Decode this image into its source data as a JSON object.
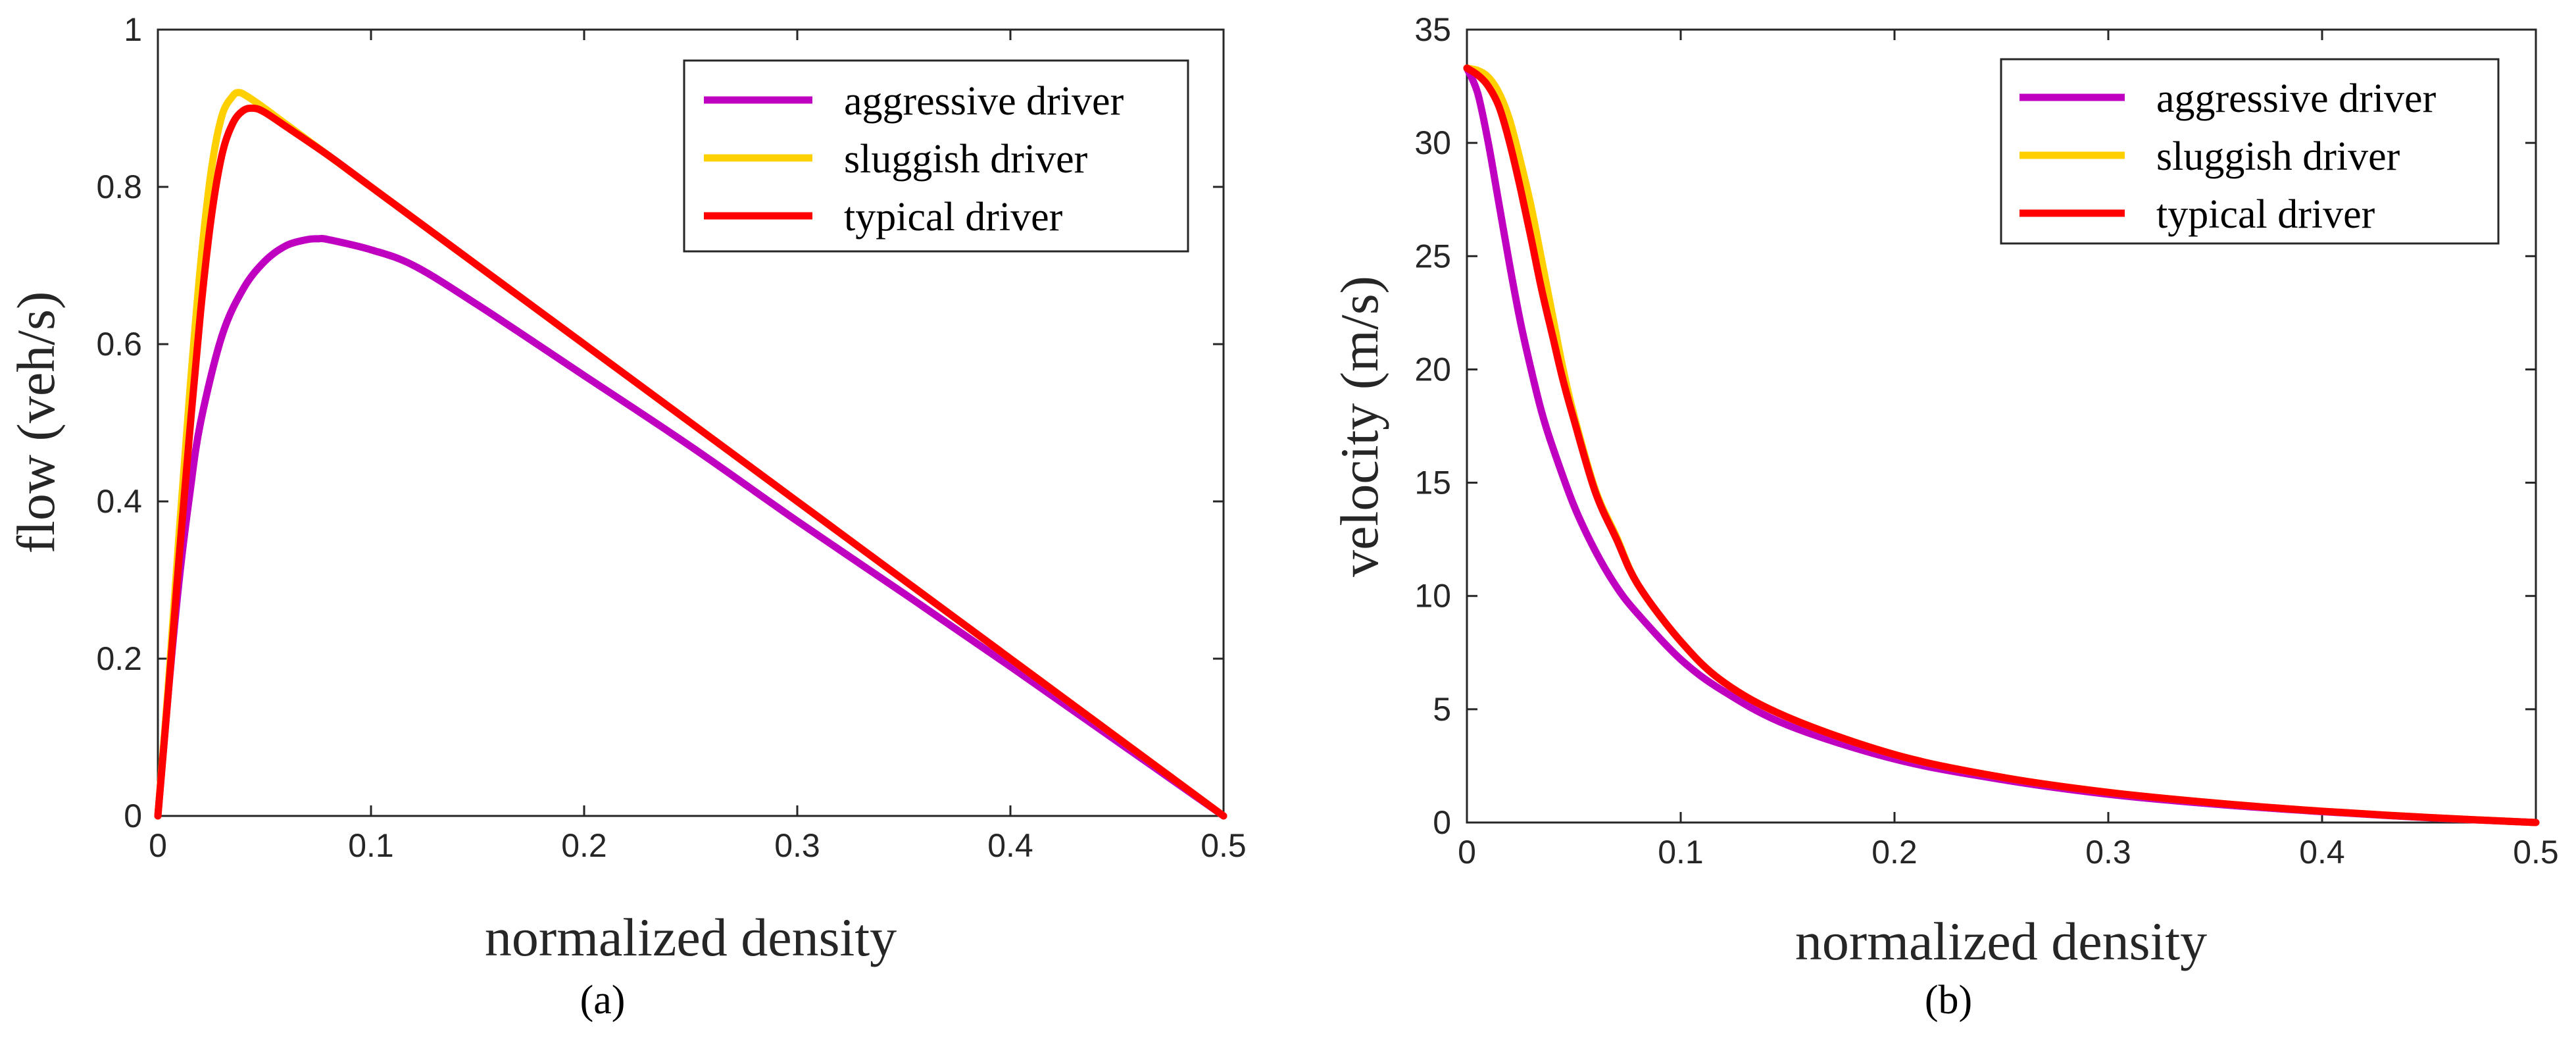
{
  "chart_data": [
    {
      "panel_label": "(a)",
      "type": "line",
      "xlabel": "normalized density",
      "ylabel": "flow (veh/s)",
      "xlim": [
        0,
        0.5
      ],
      "ylim": [
        0,
        1
      ],
      "xticks": [
        "0",
        "0.1",
        "0.2",
        "0.3",
        "0.4",
        "0.5"
      ],
      "yticks": [
        "0",
        "0.2",
        "0.4",
        "0.6",
        "0.8",
        "1"
      ],
      "legend_position": "top-right",
      "series": [
        {
          "name": "aggressive driver",
          "color": "#c000c0",
          "x": [
            0,
            0.005,
            0.01,
            0.015,
            0.02,
            0.03,
            0.04,
            0.05,
            0.06,
            0.07,
            0.075,
            0.08,
            0.1,
            0.12,
            0.15,
            0.2,
            0.25,
            0.3,
            0.35,
            0.4,
            0.45,
            0.5
          ],
          "y": [
            0,
            0.16,
            0.3,
            0.41,
            0.5,
            0.61,
            0.67,
            0.705,
            0.725,
            0.733,
            0.734,
            0.733,
            0.72,
            0.7,
            0.65,
            0.56,
            0.47,
            0.375,
            0.283,
            0.19,
            0.095,
            0
          ]
        },
        {
          "name": "sluggish driver",
          "color": "#ffd000",
          "x": [
            0,
            0.005,
            0.01,
            0.015,
            0.02,
            0.025,
            0.03,
            0.035,
            0.038,
            0.042,
            0.05,
            0.06,
            0.08,
            0.1,
            0.15,
            0.2,
            0.25,
            0.3,
            0.35,
            0.4,
            0.45,
            0.5
          ],
          "y": [
            0,
            0.17,
            0.36,
            0.54,
            0.7,
            0.82,
            0.89,
            0.915,
            0.92,
            0.915,
            0.9,
            0.88,
            0.84,
            0.8,
            0.7,
            0.6,
            0.5,
            0.4,
            0.3,
            0.2,
            0.1,
            0
          ]
        },
        {
          "name": "typical driver",
          "color": "#ff0000",
          "x": [
            0,
            0.005,
            0.01,
            0.015,
            0.02,
            0.025,
            0.03,
            0.035,
            0.04,
            0.045,
            0.05,
            0.06,
            0.08,
            0.1,
            0.15,
            0.2,
            0.25,
            0.3,
            0.35,
            0.4,
            0.45,
            0.5
          ],
          "y": [
            0,
            0.16,
            0.33,
            0.49,
            0.64,
            0.76,
            0.84,
            0.88,
            0.897,
            0.9,
            0.895,
            0.877,
            0.84,
            0.8,
            0.7,
            0.6,
            0.5,
            0.4,
            0.3,
            0.2,
            0.1,
            0
          ]
        }
      ]
    },
    {
      "panel_label": "(b)",
      "type": "line",
      "xlabel": "normalized density",
      "ylabel": "velocity (m/s)",
      "xlim": [
        0,
        0.5
      ],
      "ylim": [
        0,
        35
      ],
      "xticks": [
        "0",
        "0.1",
        "0.2",
        "0.3",
        "0.4",
        "0.5"
      ],
      "yticks": [
        "0",
        "5",
        "10",
        "15",
        "20",
        "25",
        "30",
        "35"
      ],
      "legend_position": "top-right",
      "series": [
        {
          "name": "aggressive driver",
          "color": "#c000c0",
          "x": [
            0,
            0.005,
            0.01,
            0.015,
            0.02,
            0.025,
            0.03,
            0.035,
            0.04,
            0.05,
            0.06,
            0.07,
            0.08,
            0.1,
            0.12,
            0.15,
            0.2,
            0.25,
            0.3,
            0.35,
            0.4,
            0.45,
            0.5
          ],
          "y": [
            33.3,
            32.2,
            30.0,
            27.3,
            24.6,
            22.1,
            20.0,
            18.1,
            16.6,
            14.0,
            12.0,
            10.4,
            9.2,
            7.2,
            5.8,
            4.3,
            2.8,
            1.9,
            1.25,
            0.81,
            0.48,
            0.21,
            0
          ]
        },
        {
          "name": "sluggish driver",
          "color": "#ffd000",
          "x": [
            0,
            0.005,
            0.01,
            0.015,
            0.02,
            0.025,
            0.03,
            0.035,
            0.04,
            0.045,
            0.05,
            0.06,
            0.07,
            0.08,
            0.1,
            0.12,
            0.15,
            0.2,
            0.25,
            0.3,
            0.35,
            0.4,
            0.45,
            0.5
          ],
          "y": [
            33.3,
            33.2,
            32.9,
            32.2,
            31.0,
            29.2,
            27.2,
            24.8,
            22.4,
            20.0,
            18.0,
            14.7,
            12.6,
            10.5,
            8.0,
            6.2,
            4.65,
            3.0,
            2.0,
            1.33,
            0.86,
            0.5,
            0.22,
            0
          ]
        },
        {
          "name": "typical driver",
          "color": "#ff0000",
          "x": [
            0,
            0.005,
            0.01,
            0.015,
            0.02,
            0.025,
            0.03,
            0.035,
            0.04,
            0.045,
            0.05,
            0.06,
            0.07,
            0.08,
            0.1,
            0.12,
            0.15,
            0.2,
            0.25,
            0.3,
            0.35,
            0.4,
            0.45,
            0.5
          ],
          "y": [
            33.3,
            33.0,
            32.5,
            31.6,
            30.0,
            28.0,
            25.8,
            23.5,
            21.5,
            19.5,
            17.8,
            14.6,
            12.5,
            10.5,
            8.0,
            6.2,
            4.65,
            3.0,
            2.0,
            1.33,
            0.86,
            0.5,
            0.22,
            0
          ]
        }
      ]
    }
  ]
}
